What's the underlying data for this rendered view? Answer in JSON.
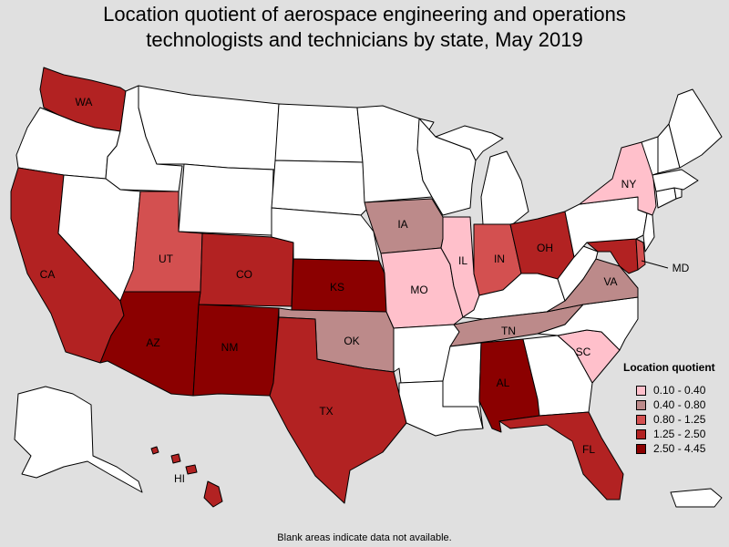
{
  "title_line1": "Location quotient of aerospace engineering and operations",
  "title_line2": "technologists and technicians by state, May 2019",
  "legend": {
    "title": "Location quotient",
    "bins": [
      {
        "label": "0.10 - 0.40",
        "color": "#ffc0cb"
      },
      {
        "label": "0.40 - 0.80",
        "color": "#bc8a8a"
      },
      {
        "label": "0.80 - 1.25",
        "color": "#d35050"
      },
      {
        "label": "1.25 - 2.50",
        "color": "#b22222"
      },
      {
        "label": "2.50 - 4.45",
        "color": "#8b0000"
      }
    ]
  },
  "no_data_color": "#ffffff",
  "footnote": "Blank areas indicate data not available.",
  "state_labels": {
    "WA": "WA",
    "CA": "CA",
    "UT": "UT",
    "CO": "CO",
    "AZ": "AZ",
    "NM": "NM",
    "KS": "KS",
    "OK": "OK",
    "TX": "TX",
    "IA": "IA",
    "MO": "MO",
    "IL": "IL",
    "IN": "IN",
    "OH": "OH",
    "TN": "TN",
    "AL": "AL",
    "FL": "FL",
    "SC": "SC",
    "VA": "VA",
    "NY": "NY",
    "MD": "MD",
    "HI": "HI"
  },
  "states_by_bin": {
    "0.10 - 0.40": [
      "NY",
      "IL",
      "MO",
      "SC"
    ],
    "0.40 - 0.80": [
      "IA",
      "OK",
      "TN",
      "VA"
    ],
    "0.80 - 1.25": [
      "UT",
      "IN",
      "DE"
    ],
    "1.25 - 2.50": [
      "WA",
      "CA",
      "CO",
      "TX",
      "OH",
      "FL",
      "HI",
      "MD"
    ],
    "2.50 - 4.45": [
      "AZ",
      "NM",
      "KS",
      "AL"
    ]
  }
}
